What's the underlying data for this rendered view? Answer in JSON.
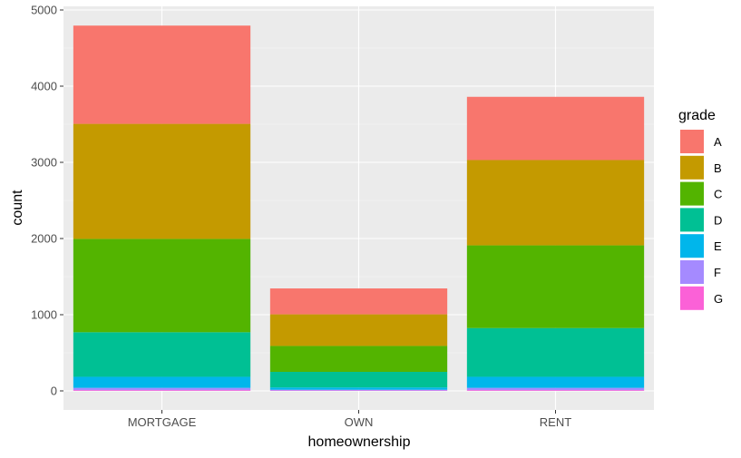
{
  "chart_data": {
    "type": "bar",
    "stacked": true,
    "xlabel": "homeownership",
    "ylabel": "count",
    "ylim": [
      -240,
      5000
    ],
    "yticks": [
      0,
      1000,
      2000,
      3000,
      4000,
      5000
    ],
    "categories": [
      "MORTGAGE",
      "OWN",
      "RENT"
    ],
    "legend": {
      "title": "grade",
      "position": "right"
    },
    "grid": true,
    "colors": {
      "panel": "#EBEBEB",
      "grid_major": "#FFFFFF",
      "grid_minor": "#F5F5F5"
    },
    "series": [
      {
        "name": "A",
        "color": "#F8766D",
        "values": [
          1290,
          340,
          830
        ]
      },
      {
        "name": "B",
        "color": "#C49A00",
        "values": [
          1510,
          415,
          1120
        ]
      },
      {
        "name": "C",
        "color": "#53B400",
        "values": [
          1225,
          340,
          1085
        ]
      },
      {
        "name": "D",
        "color": "#00C094",
        "values": [
          585,
          205,
          640
        ]
      },
      {
        "name": "E",
        "color": "#00B6EB",
        "values": [
          145,
          30,
          145
        ]
      },
      {
        "name": "F",
        "color": "#A58AFF",
        "values": [
          30,
          10,
          30
        ]
      },
      {
        "name": "G",
        "color": "#FB61D7",
        "values": [
          10,
          5,
          10
        ]
      }
    ]
  }
}
